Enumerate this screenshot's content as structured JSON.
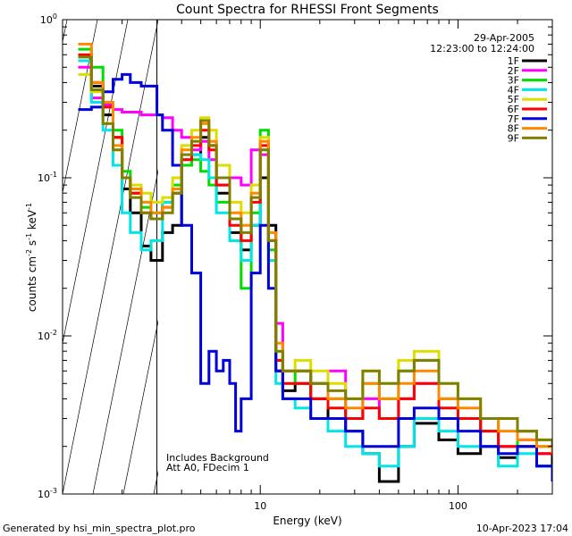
{
  "chart_data": {
    "type": "line",
    "title": "Count Spectra for RHESSI Front Segments",
    "xlabel": "Energy (keV)",
    "ylabel_parts": {
      "a": "counts cm",
      "b": "-2",
      "c": " s",
      "d": "-1",
      "e": " keV",
      "f": "-1"
    },
    "x_scale": "log",
    "y_scale": "log",
    "xlim": [
      1.0,
      300
    ],
    "ylim": [
      0.001,
      1.0
    ],
    "x_ticks": [
      {
        "value": 10,
        "label": "10"
      },
      {
        "value": 100,
        "label": "100"
      }
    ],
    "y_ticks": [
      {
        "value": 1.0,
        "base": "10",
        "exp": "0"
      },
      {
        "value": 0.1,
        "base": "10",
        "exp": "-1"
      },
      {
        "value": 0.01,
        "base": "10",
        "exp": "-2"
      },
      {
        "value": 0.001,
        "base": "10",
        "exp": "-3"
      }
    ],
    "hatched_below_energy": 3.0,
    "date": "29-Apr-2005",
    "time_range": "12:23:00 to 12:24:00",
    "annotations": [
      "Includes Background",
      "Att A0, FDecim 1"
    ],
    "legend_position": "top-right",
    "series": [
      {
        "name": "1F",
        "color": "#000000",
        "x": [
          1.2,
          1.4,
          1.6,
          1.8,
          2.0,
          2.2,
          2.5,
          2.8,
          3.2,
          3.6,
          4.0,
          4.5,
          5.0,
          5.5,
          6.0,
          7.0,
          8.0,
          9.0,
          10,
          11,
          12,
          13,
          15,
          18,
          22,
          27,
          33,
          40,
          50,
          60,
          80,
          100,
          130,
          160,
          200,
          250,
          300
        ],
        "y": [
          0.55,
          0.38,
          0.25,
          0.18,
          0.085,
          0.06,
          0.037,
          0.03,
          0.045,
          0.05,
          0.12,
          0.14,
          0.18,
          0.16,
          0.08,
          0.045,
          0.035,
          0.05,
          0.1,
          0.05,
          0.006,
          0.0045,
          0.005,
          0.004,
          0.003,
          0.0025,
          0.0018,
          0.0012,
          0.002,
          0.0028,
          0.0022,
          0.0018,
          0.002,
          0.0017,
          0.0025,
          0.0015,
          0.002
        ]
      },
      {
        "name": "2F",
        "color": "#ff00ff",
        "x": [
          1.2,
          1.4,
          1.6,
          1.8,
          2.0,
          2.2,
          2.5,
          2.8,
          3.2,
          3.6,
          4.0,
          4.5,
          5.0,
          5.5,
          6.0,
          7.0,
          8.0,
          9.0,
          10,
          11,
          12,
          13,
          15,
          18,
          22,
          27,
          33,
          40,
          50,
          60,
          80,
          100,
          130,
          160,
          200,
          250,
          300
        ],
        "y": [
          0.5,
          0.32,
          0.29,
          0.27,
          0.26,
          0.26,
          0.25,
          0.25,
          0.24,
          0.2,
          0.18,
          0.15,
          0.17,
          0.13,
          0.09,
          0.1,
          0.09,
          0.15,
          0.14,
          0.04,
          0.012,
          0.006,
          0.006,
          0.005,
          0.006,
          0.003,
          0.004,
          0.003,
          0.004,
          0.005,
          0.003,
          0.003,
          0.0025,
          0.002,
          0.0022,
          0.0018,
          0.002
        ]
      },
      {
        "name": "3F",
        "color": "#00dd00",
        "x": [
          1.2,
          1.4,
          1.6,
          1.8,
          2.0,
          2.2,
          2.5,
          2.8,
          3.2,
          3.6,
          4.0,
          4.5,
          5.0,
          5.5,
          6.0,
          7.0,
          8.0,
          9.0,
          10,
          11,
          12,
          13,
          15,
          18,
          22,
          27,
          33,
          40,
          50,
          60,
          80,
          100,
          130,
          160,
          200,
          250,
          300
        ],
        "y": [
          0.65,
          0.5,
          0.3,
          0.2,
          0.11,
          0.08,
          0.065,
          0.06,
          0.07,
          0.09,
          0.12,
          0.13,
          0.11,
          0.09,
          0.07,
          0.04,
          0.02,
          0.06,
          0.2,
          0.035,
          0.007,
          0.005,
          0.006,
          0.005,
          0.004,
          0.003,
          0.005,
          0.004,
          0.006,
          0.007,
          0.004,
          0.003,
          0.0025,
          0.003,
          0.002,
          0.002,
          0.0018
        ]
      },
      {
        "name": "4F",
        "color": "#00e5e5",
        "x": [
          1.2,
          1.4,
          1.6,
          1.8,
          2.0,
          2.2,
          2.5,
          2.8,
          3.2,
          3.6,
          4.0,
          4.5,
          5.0,
          5.5,
          6.0,
          7.0,
          8.0,
          9.0,
          10,
          11,
          12,
          13,
          15,
          18,
          22,
          27,
          33,
          40,
          50,
          60,
          80,
          100,
          130,
          160,
          200,
          250,
          300
        ],
        "y": [
          0.55,
          0.3,
          0.2,
          0.12,
          0.06,
          0.045,
          0.035,
          0.04,
          0.07,
          0.08,
          0.13,
          0.14,
          0.13,
          0.1,
          0.06,
          0.04,
          0.03,
          0.05,
          0.15,
          0.03,
          0.005,
          0.004,
          0.0035,
          0.003,
          0.0025,
          0.002,
          0.0018,
          0.0015,
          0.002,
          0.003,
          0.0025,
          0.002,
          0.002,
          0.0015,
          0.0018,
          0.0015,
          0.0015
        ]
      },
      {
        "name": "5F",
        "color": "#dddd00",
        "x": [
          1.2,
          1.4,
          1.6,
          1.8,
          2.0,
          2.2,
          2.5,
          2.8,
          3.2,
          3.6,
          4.0,
          4.5,
          5.0,
          5.5,
          6.0,
          7.0,
          8.0,
          9.0,
          10,
          11,
          12,
          13,
          15,
          18,
          22,
          27,
          33,
          40,
          50,
          60,
          80,
          100,
          130,
          160,
          200,
          250,
          300
        ],
        "y": [
          0.45,
          0.35,
          0.3,
          0.15,
          0.1,
          0.09,
          0.08,
          0.07,
          0.075,
          0.1,
          0.16,
          0.2,
          0.24,
          0.2,
          0.12,
          0.07,
          0.06,
          0.09,
          0.18,
          0.04,
          0.008,
          0.006,
          0.007,
          0.006,
          0.005,
          0.004,
          0.006,
          0.005,
          0.007,
          0.008,
          0.005,
          0.004,
          0.003,
          0.003,
          0.0025,
          0.0022,
          0.002
        ]
      },
      {
        "name": "6F",
        "color": "#ff0000",
        "x": [
          1.2,
          1.4,
          1.6,
          1.8,
          2.0,
          2.2,
          2.5,
          2.8,
          3.2,
          3.6,
          4.0,
          4.5,
          5.0,
          5.5,
          6.0,
          7.0,
          8.0,
          9.0,
          10,
          11,
          12,
          13,
          15,
          18,
          22,
          27,
          33,
          40,
          50,
          60,
          80,
          100,
          130,
          160,
          200,
          250,
          300
        ],
        "y": [
          0.6,
          0.4,
          0.28,
          0.18,
          0.1,
          0.08,
          0.06,
          0.055,
          0.065,
          0.08,
          0.13,
          0.16,
          0.2,
          0.15,
          0.09,
          0.05,
          0.04,
          0.07,
          0.16,
          0.04,
          0.007,
          0.005,
          0.005,
          0.004,
          0.0035,
          0.003,
          0.0035,
          0.003,
          0.004,
          0.005,
          0.0035,
          0.003,
          0.0025,
          0.002,
          0.002,
          0.0018,
          0.0018
        ]
      },
      {
        "name": "7F",
        "color": "#0000dd",
        "x": [
          1.2,
          1.4,
          1.6,
          1.8,
          2.0,
          2.2,
          2.5,
          2.8,
          3.0,
          3.2,
          3.6,
          4.0,
          4.5,
          5.0,
          5.5,
          6.0,
          6.5,
          7.0,
          7.5,
          8.0,
          9.0,
          10,
          11,
          12,
          13,
          15,
          18,
          22,
          27,
          33,
          40,
          50,
          60,
          80,
          100,
          130,
          160,
          200,
          250,
          300
        ],
        "y": [
          0.27,
          0.28,
          0.35,
          0.42,
          0.45,
          0.4,
          0.38,
          0.38,
          0.25,
          0.2,
          0.12,
          0.05,
          0.025,
          0.005,
          0.008,
          0.006,
          0.007,
          0.005,
          0.0025,
          0.004,
          0.025,
          0.05,
          0.02,
          0.006,
          0.004,
          0.004,
          0.003,
          0.003,
          0.0025,
          0.002,
          0.002,
          0.003,
          0.0035,
          0.003,
          0.0025,
          0.002,
          0.0018,
          0.002,
          0.0015,
          0.0012
        ]
      },
      {
        "name": "8F",
        "color": "#ff8800",
        "x": [
          1.2,
          1.4,
          1.6,
          1.8,
          2.0,
          2.2,
          2.5,
          2.8,
          3.2,
          3.6,
          4.0,
          4.5,
          5.0,
          5.5,
          6.0,
          7.0,
          8.0,
          9.0,
          10,
          11,
          12,
          13,
          15,
          18,
          22,
          27,
          33,
          40,
          50,
          60,
          80,
          100,
          130,
          160,
          200,
          250,
          300
        ],
        "y": [
          0.7,
          0.4,
          0.3,
          0.16,
          0.1,
          0.085,
          0.07,
          0.06,
          0.065,
          0.085,
          0.15,
          0.18,
          0.22,
          0.17,
          0.1,
          0.06,
          0.05,
          0.08,
          0.17,
          0.045,
          0.009,
          0.006,
          0.006,
          0.005,
          0.004,
          0.0035,
          0.005,
          0.004,
          0.005,
          0.006,
          0.004,
          0.0035,
          0.003,
          0.0025,
          0.0022,
          0.002,
          0.0018
        ]
      },
      {
        "name": "9F",
        "color": "#808000",
        "x": [
          1.2,
          1.4,
          1.6,
          1.8,
          2.0,
          2.2,
          2.5,
          2.8,
          3.2,
          3.6,
          4.0,
          4.5,
          5.0,
          5.5,
          6.0,
          7.0,
          8.0,
          9.0,
          10,
          11,
          12,
          13,
          15,
          18,
          22,
          27,
          33,
          40,
          50,
          60,
          80,
          100,
          130,
          160,
          200,
          250,
          300
        ],
        "y": [
          0.58,
          0.36,
          0.22,
          0.15,
          0.1,
          0.075,
          0.06,
          0.055,
          0.06,
          0.08,
          0.14,
          0.17,
          0.23,
          0.16,
          0.1,
          0.055,
          0.045,
          0.075,
          0.15,
          0.04,
          0.008,
          0.006,
          0.006,
          0.005,
          0.0045,
          0.004,
          0.006,
          0.005,
          0.006,
          0.007,
          0.005,
          0.004,
          0.003,
          0.003,
          0.0025,
          0.0022,
          0.002
        ]
      }
    ]
  },
  "footer": {
    "generated_by": "Generated by hsi_min_spectra_plot.pro",
    "timestamp": "10-Apr-2023 17:04"
  }
}
